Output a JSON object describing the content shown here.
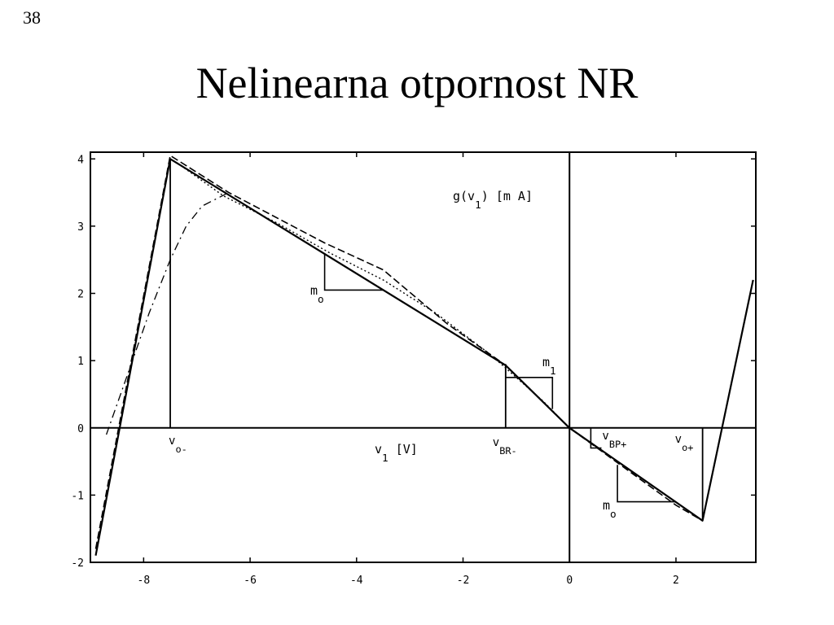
{
  "page_number": "38",
  "title": "Nelinearna otpornost NR",
  "chart_data": {
    "type": "line",
    "title": "",
    "xlabel": "v1 [V]",
    "ylabel": "g(v1) [mA]",
    "xlim": [
      -9,
      3.5
    ],
    "ylim": [
      -2,
      4.1
    ],
    "x_ticks": [
      -8,
      -6,
      -4,
      -2,
      0,
      2
    ],
    "x_tick_labels": [
      "-8",
      "-6",
      "-4",
      "-2",
      "0",
      "2"
    ],
    "y_ticks": [
      -2,
      -1,
      0,
      1,
      2,
      3,
      4
    ],
    "y_tick_labels": [
      "-2",
      "-1",
      "0",
      "1",
      "2",
      "3",
      "4"
    ],
    "grid": false,
    "legend": "none",
    "series": [
      {
        "style": "solid",
        "x": [
          -8.9,
          -7.5,
          -1.2,
          0,
          2.5,
          3.45
        ],
        "y": [
          -1.9,
          4.0,
          0.93,
          0,
          -1.38,
          2.2
        ]
      },
      {
        "style": "dashed",
        "x": [
          -8.9,
          -7.5,
          -6.4,
          -4.6,
          -3.5,
          -2.3,
          -1.2,
          0,
          2.0,
          2.5,
          3.45
        ],
        "y": [
          -1.8,
          4.05,
          3.5,
          2.75,
          2.35,
          1.55,
          0.93,
          0,
          -1.15,
          -1.38,
          2.2
        ]
      },
      {
        "style": "dash-dot",
        "x": [
          -8.7,
          -8.3,
          -7.9,
          -7.5,
          -7.2,
          -6.9,
          -6.6,
          -6.4
        ],
        "y": [
          -0.1,
          0.8,
          1.7,
          2.5,
          3.0,
          3.3,
          3.42,
          3.5
        ]
      },
      {
        "style": "dotted",
        "x": [
          -7.3,
          -6.5,
          -5.5,
          -4.5,
          -3.5,
          -2.5,
          -1.5,
          -1.0,
          -0.5,
          0
        ],
        "y": [
          3.9,
          3.45,
          3.05,
          2.6,
          2.2,
          1.7,
          1.1,
          0.75,
          0.4,
          0
        ]
      }
    ],
    "annotations": {
      "v_o_minus": {
        "main": "v",
        "sub": "o-",
        "x": -7.5
      },
      "v_br_minus": {
        "main": "v",
        "sub": "BR-",
        "x": -1.2
      },
      "v_br_plus": {
        "main": "v",
        "sub": "BP+",
        "x": 0.4
      },
      "v_o_plus": {
        "main": "v",
        "sub": "o+",
        "x": 2.5
      },
      "m_o_upper": {
        "main": "m",
        "sub": "o"
      },
      "m_1": {
        "main": "m",
        "sub": "1"
      },
      "m_o_lower": {
        "main": "m",
        "sub": "o"
      },
      "x_axis_label": {
        "main": "v",
        "sub": "1",
        "rest": " [V]"
      },
      "y_axis_label": {
        "pre": "g(v",
        "sub": "1",
        "rest": ") [m A]"
      }
    }
  }
}
